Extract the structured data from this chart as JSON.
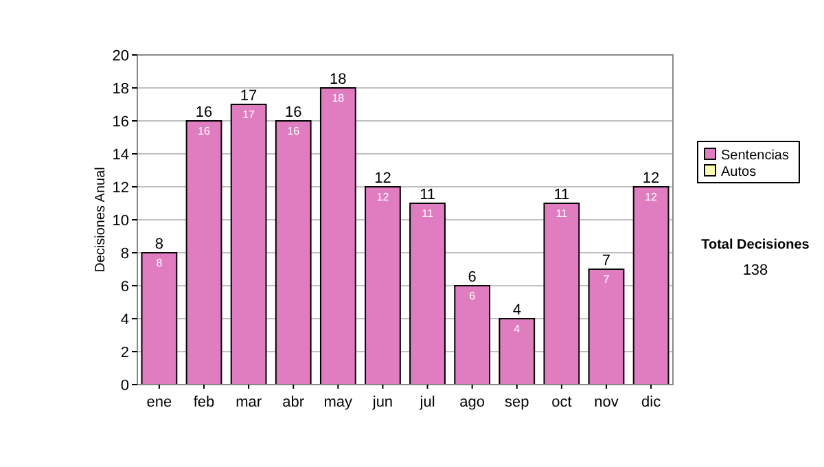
{
  "chart_data": {
    "type": "bar",
    "stacked": true,
    "ylabel": "Decisiones Anual",
    "categories": [
      "ene",
      "feb",
      "mar",
      "abr",
      "may",
      "jun",
      "jul",
      "ago",
      "sep",
      "oct",
      "nov",
      "dic"
    ],
    "series": [
      {
        "name": "Sentencias",
        "color": "#e07cc0",
        "values": [
          8,
          16,
          17,
          16,
          18,
          12,
          11,
          6,
          4,
          11,
          7,
          12
        ],
        "value_labels": [
          "8",
          "16",
          "17",
          "16",
          "18",
          "12",
          "11",
          "6",
          "4",
          "11",
          "7",
          "12"
        ]
      },
      {
        "name": "Autos",
        "color": "#ffffb0",
        "values": [
          0,
          0,
          0,
          0,
          0,
          0,
          0,
          0,
          0,
          0,
          0,
          0
        ]
      }
    ],
    "totals": [
      "8",
      "16",
      "17",
      "16",
      "18",
      "12",
      "11",
      "6",
      "4",
      "11",
      "7",
      "12"
    ],
    "ylim": [
      0,
      20
    ],
    "yticks": [
      0,
      2,
      4,
      6,
      8,
      10,
      12,
      14,
      16,
      18,
      20
    ],
    "grid": "y",
    "legend": "right",
    "annotations": [
      "Total Decisiones",
      "138"
    ]
  }
}
